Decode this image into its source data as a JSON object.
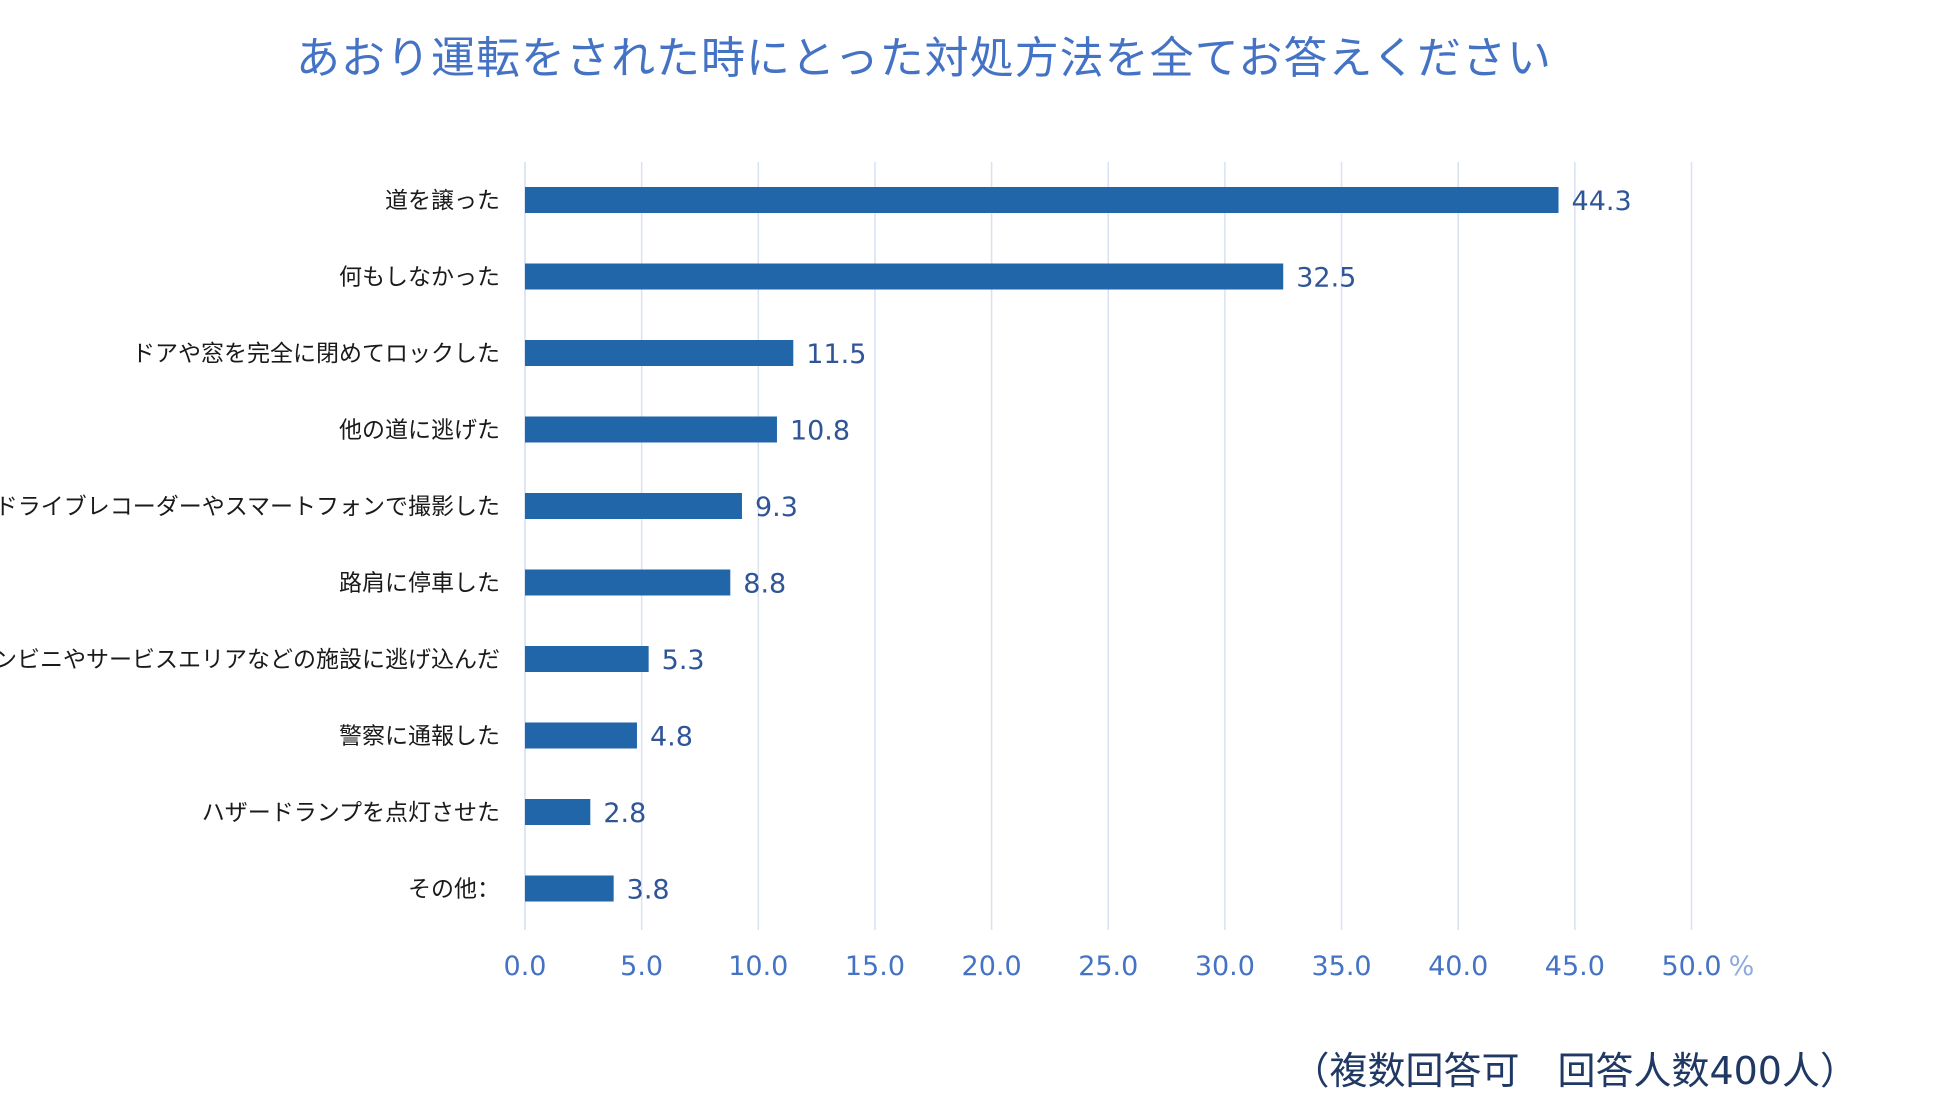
{
  "chart_data": {
    "type": "bar",
    "orientation": "horizontal",
    "title": "あおり運転をされた時にとった対処方法を全てお答えください",
    "categories": [
      "道を譲った",
      "何もしなかった",
      "ドアや窓を完全に閉めてロックした",
      "他の道に逃げた",
      "ドライブレコーダーやスマートフォンで撮影した",
      "路肩に停車した",
      "コンビニやサービスエリアなどの施設に逃げ込んだ",
      "警察に通報した",
      "ハザードランプを点灯させた",
      "その他："
    ],
    "values": [
      44.3,
      32.5,
      11.5,
      10.8,
      9.3,
      8.8,
      5.3,
      4.8,
      2.8,
      3.8
    ],
    "value_labels": [
      "44.3",
      "32.5",
      "11.5",
      "10.8",
      "9.3",
      "8.8",
      "5.3",
      "4.8",
      "2.8",
      "3.8"
    ],
    "xlim": [
      0,
      50
    ],
    "x_ticks": [
      0,
      5,
      10,
      15,
      20,
      25,
      30,
      35,
      40,
      45,
      50
    ],
    "x_tick_labels": [
      "0.0",
      "5.0",
      "10.0",
      "15.0",
      "20.0",
      "25.0",
      "30.0",
      "35.0",
      "40.0",
      "45.0",
      "50.0"
    ],
    "x_unit": "%",
    "grid": "vertical",
    "legend": "none",
    "bar_color": "#2266aa",
    "note": "（複数回答可　回答人数400人）"
  }
}
